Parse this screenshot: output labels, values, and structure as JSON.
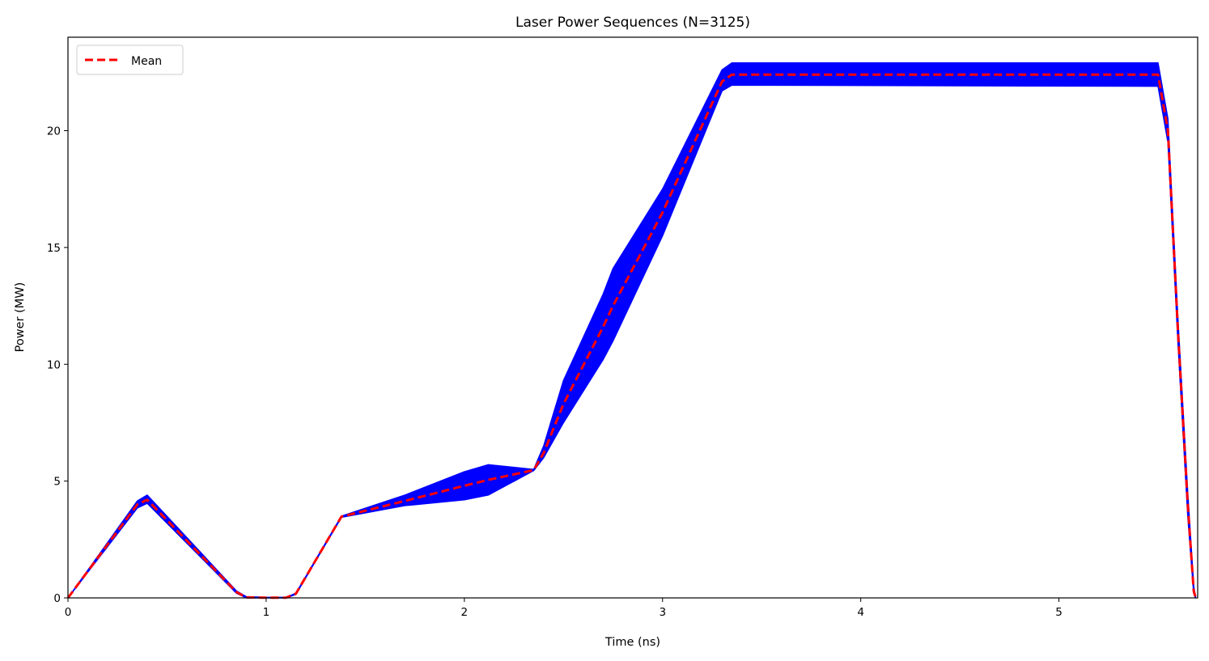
{
  "chart_data": {
    "type": "area",
    "title": "Laser Power Sequences (N=3125)",
    "xlabel": "Time (ns)",
    "ylabel": "Power (MW)",
    "xlim": [
      0,
      5.7
    ],
    "ylim": [
      0,
      24
    ],
    "xticks": [
      0,
      1,
      2,
      3,
      4,
      5
    ],
    "yticks": [
      0,
      5,
      10,
      15,
      20
    ],
    "grid": false,
    "legend": {
      "placement": "top-left",
      "entries": [
        "Mean"
      ]
    },
    "colors": {
      "band": "#0000ff",
      "mean": "#ff0000"
    },
    "band": {
      "name": "",
      "x": [
        0,
        0.35,
        0.4,
        0.85,
        0.9,
        1.0,
        1.1,
        1.15,
        1.38,
        1.7,
        2.0,
        2.12,
        2.35,
        2.4,
        2.5,
        2.7,
        2.75,
        3.0,
        3.3,
        3.35,
        5.5,
        5.55,
        5.6,
        5.65,
        5.68,
        5.69
      ],
      "upper": [
        0,
        4.15,
        4.4,
        0.3,
        0.05,
        0.02,
        0.02,
        0.2,
        3.5,
        4.4,
        5.4,
        5.7,
        5.5,
        6.5,
        9.3,
        13.0,
        14.1,
        17.5,
        22.6,
        22.9,
        22.9,
        20.5,
        12.0,
        4.5,
        0.5,
        0
      ],
      "lower": [
        0,
        3.85,
        4.05,
        0.2,
        0.0,
        0.0,
        0.0,
        0.15,
        3.45,
        3.95,
        4.2,
        4.4,
        5.45,
        6.0,
        7.5,
        10.2,
        11.0,
        15.5,
        21.7,
        21.95,
        21.9,
        19.5,
        11.0,
        3.5,
        0.2,
        0
      ]
    },
    "series": [
      {
        "name": "Mean",
        "x": [
          0,
          0.35,
          0.4,
          0.85,
          0.9,
          1.0,
          1.1,
          1.15,
          1.38,
          1.7,
          2.0,
          2.12,
          2.35,
          2.4,
          2.5,
          2.7,
          2.75,
          3.0,
          3.3,
          3.35,
          3.5,
          5.5,
          5.55,
          5.6,
          5.65,
          5.68,
          5.69
        ],
        "y": [
          0,
          4.0,
          4.2,
          0.25,
          0.02,
          0.01,
          0.01,
          0.18,
          3.48,
          4.15,
          4.8,
          5.05,
          5.47,
          6.2,
          8.3,
          11.6,
          12.5,
          16.5,
          22.1,
          22.4,
          22.4,
          22.4,
          20.0,
          11.5,
          4.0,
          0.3,
          0
        ]
      }
    ]
  }
}
